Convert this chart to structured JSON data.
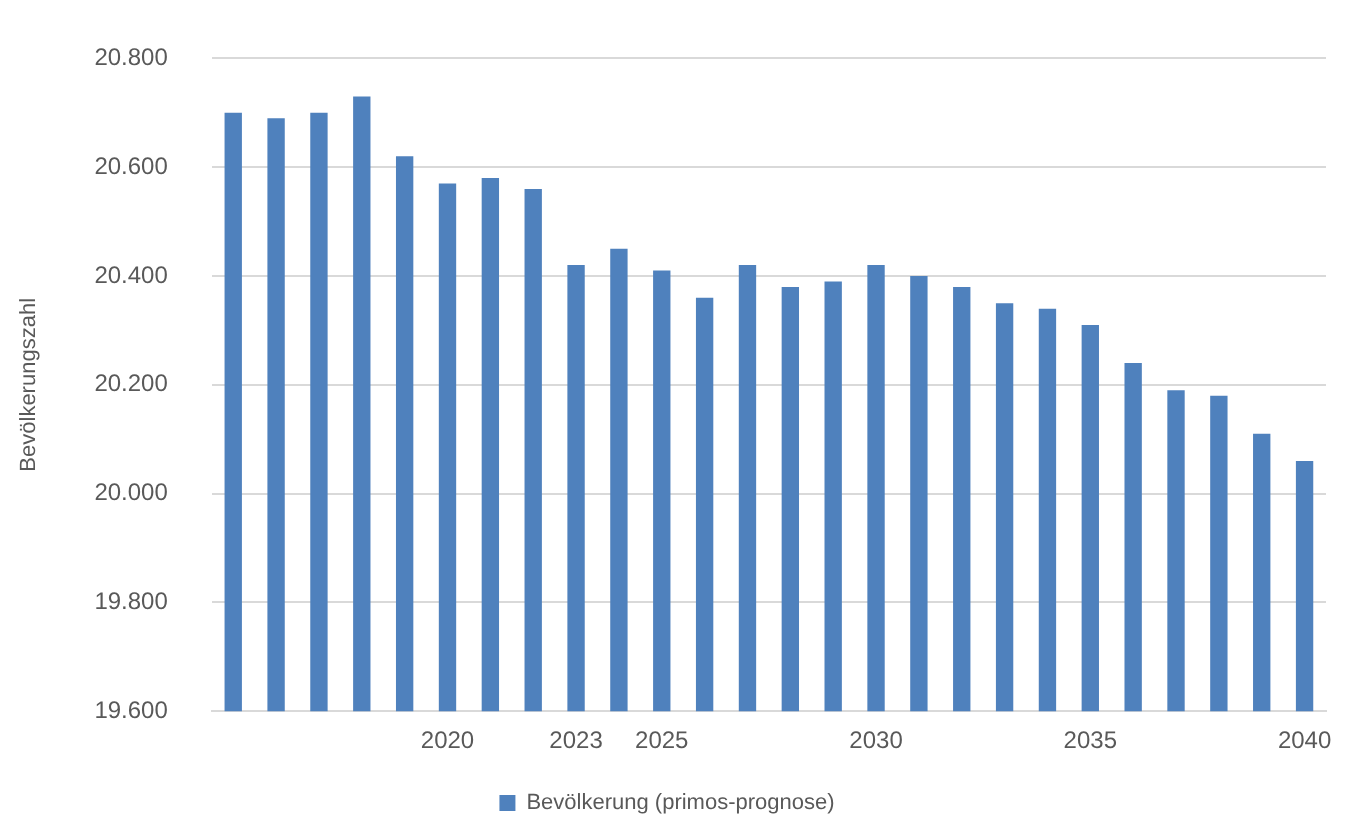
{
  "chart_data": {
    "type": "bar",
    "ylabel": "Bevölkerungszahl",
    "categories": [
      null,
      null,
      null,
      null,
      null,
      "2020",
      null,
      null,
      "2023",
      null,
      "2025",
      null,
      null,
      null,
      null,
      "2030",
      null,
      null,
      null,
      null,
      "2035",
      null,
      null,
      null,
      null,
      "2040"
    ],
    "series": [
      {
        "name": "Bevölkerung (primos-prognose)",
        "color": "#4f81bd",
        "values": [
          20700,
          20690,
          20700,
          20730,
          20620,
          20570,
          20580,
          20560,
          20420,
          20450,
          20410,
          20360,
          20420,
          20380,
          20390,
          20420,
          20400,
          20380,
          20350,
          20340,
          20310,
          20240,
          20190,
          20180,
          20110,
          20060
        ]
      }
    ],
    "ylim": [
      19600,
      20800
    ],
    "yticks": [
      {
        "value": 19600,
        "label": "19.600"
      },
      {
        "value": 19800,
        "label": "19.800"
      },
      {
        "value": 20000,
        "label": "20.000"
      },
      {
        "value": 20200,
        "label": "20.200"
      },
      {
        "value": 20400,
        "label": "20.400"
      },
      {
        "value": 20600,
        "label": "20.600"
      },
      {
        "value": 20800,
        "label": "20.800"
      }
    ],
    "grid": "y",
    "legend": "bottom"
  }
}
